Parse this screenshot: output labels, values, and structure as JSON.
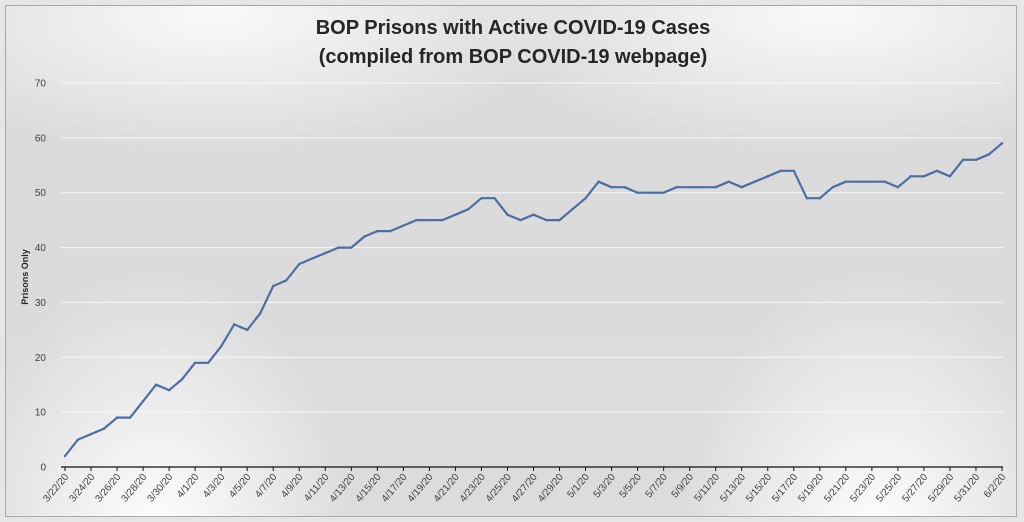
{
  "chart_data": {
    "type": "line",
    "title": "BOP Prisons with Active COVID-19 Cases",
    "subtitle": "(compiled from BOP COVID-19 webpage)",
    "xlabel": "",
    "ylabel": "Prisons Only",
    "ylim": [
      0,
      70
    ],
    "yticks": [
      0,
      10,
      20,
      30,
      40,
      50,
      60,
      70
    ],
    "grid": "horizontal",
    "legend": "none",
    "x_tick_labels": [
      "3/22/20",
      "3/24/20",
      "3/26/20",
      "3/28/20",
      "3/30/20",
      "4/1/20",
      "4/3/20",
      "4/5/20",
      "4/7/20",
      "4/9/20",
      "4/11/20",
      "4/13/20",
      "4/15/20",
      "4/17/20",
      "4/19/20",
      "4/21/20",
      "4/23/20",
      "4/25/20",
      "4/27/20",
      "4/29/20",
      "5/1/20",
      "5/3/20",
      "5/5/20",
      "5/7/20",
      "5/9/20",
      "5/11/20",
      "5/13/20",
      "5/15/20",
      "5/17/20",
      "5/19/20",
      "5/21/20",
      "5/23/20",
      "5/25/20",
      "5/27/20",
      "5/29/20",
      "5/31/20",
      "6/2/20"
    ],
    "x": [
      "3/22/20",
      "3/23/20",
      "3/24/20",
      "3/25/20",
      "3/26/20",
      "3/27/20",
      "3/28/20",
      "3/29/20",
      "3/30/20",
      "3/31/20",
      "4/1/20",
      "4/2/20",
      "4/3/20",
      "4/4/20",
      "4/5/20",
      "4/6/20",
      "4/7/20",
      "4/8/20",
      "4/9/20",
      "4/10/20",
      "4/11/20",
      "4/12/20",
      "4/13/20",
      "4/14/20",
      "4/15/20",
      "4/16/20",
      "4/17/20",
      "4/18/20",
      "4/19/20",
      "4/20/20",
      "4/21/20",
      "4/22/20",
      "4/23/20",
      "4/24/20",
      "4/25/20",
      "4/26/20",
      "4/27/20",
      "4/28/20",
      "4/29/20",
      "4/30/20",
      "5/1/20",
      "5/2/20",
      "5/3/20",
      "5/4/20",
      "5/5/20",
      "5/6/20",
      "5/7/20",
      "5/8/20",
      "5/9/20",
      "5/10/20",
      "5/11/20",
      "5/12/20",
      "5/13/20",
      "5/14/20",
      "5/15/20",
      "5/16/20",
      "5/17/20",
      "5/18/20",
      "5/19/20",
      "5/20/20",
      "5/21/20",
      "5/22/20",
      "5/23/20",
      "5/24/20",
      "5/25/20",
      "5/26/20",
      "5/27/20",
      "5/28/20",
      "5/29/20",
      "5/30/20",
      "5/31/20",
      "6/1/20",
      "6/2/20"
    ],
    "series": [
      {
        "color": "#4a6fa5",
        "values": [
          2,
          5,
          6,
          7,
          9,
          9,
          12,
          15,
          14,
          16,
          19,
          19,
          22,
          26,
          25,
          28,
          33,
          34,
          37,
          38,
          39,
          40,
          40,
          42,
          43,
          43,
          44,
          45,
          45,
          45,
          46,
          47,
          49,
          49,
          46,
          45,
          46,
          45,
          45,
          47,
          49,
          52,
          51,
          51,
          50,
          50,
          50,
          51,
          51,
          51,
          51,
          52,
          51,
          52,
          53,
          54,
          54,
          49,
          49,
          51,
          52,
          52,
          52,
          52,
          51,
          53,
          53,
          54,
          53,
          56,
          56,
          57,
          59
        ]
      }
    ]
  }
}
